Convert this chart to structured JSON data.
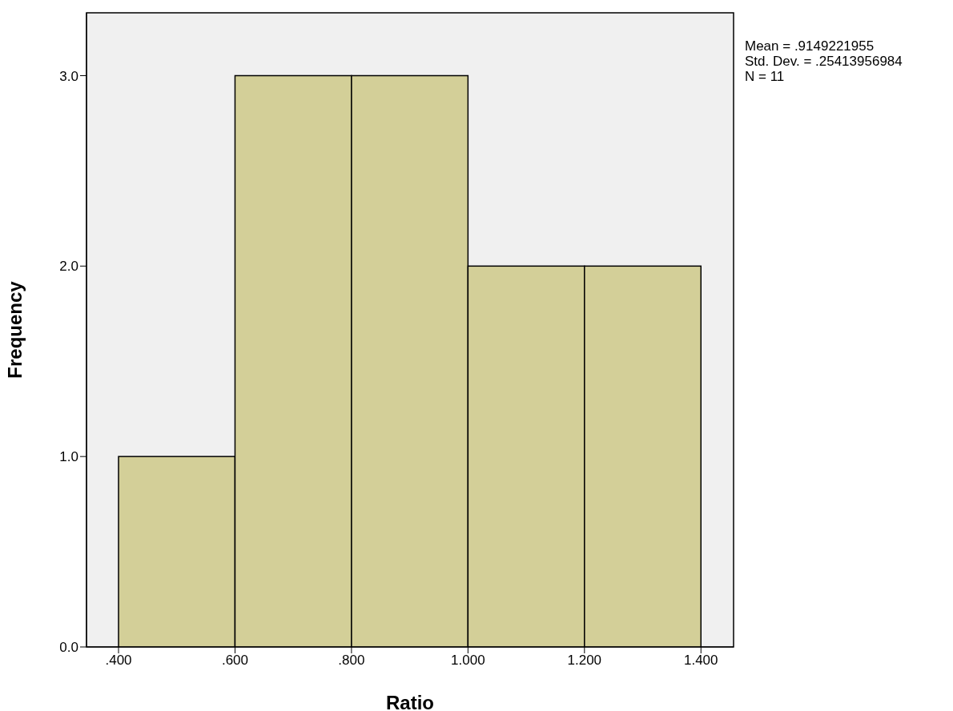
{
  "chart_data": {
    "type": "histogram",
    "xlabel": "Ratio",
    "ylabel": "Frequency",
    "bins": [
      0.4,
      0.6,
      0.8,
      1.0,
      1.2,
      1.4
    ],
    "values": [
      1,
      3,
      3,
      2,
      2
    ],
    "color": "#d3cf98",
    "xlim": [
      0.345,
      1.456
    ],
    "xticks": [
      {
        "value": 0.4,
        "label": ".400"
      },
      {
        "value": 0.6,
        "label": ".600"
      },
      {
        "value": 0.8,
        "label": ".800"
      },
      {
        "value": 1.0,
        "label": "1.000"
      },
      {
        "value": 1.2,
        "label": "1.200"
      },
      {
        "value": 1.4,
        "label": "1.400"
      }
    ],
    "ylim": [
      0,
      3.33
    ],
    "yticks": [
      {
        "value": 0,
        "label": "0.0"
      },
      {
        "value": 1,
        "label": "1.0"
      },
      {
        "value": 2,
        "label": "2.0"
      },
      {
        "value": 3,
        "label": "3.0"
      }
    ],
    "grid": false,
    "annotations": [
      "Mean = .9149221955",
      "Std. Dev. = .25413956984",
      "N = 11"
    ]
  }
}
